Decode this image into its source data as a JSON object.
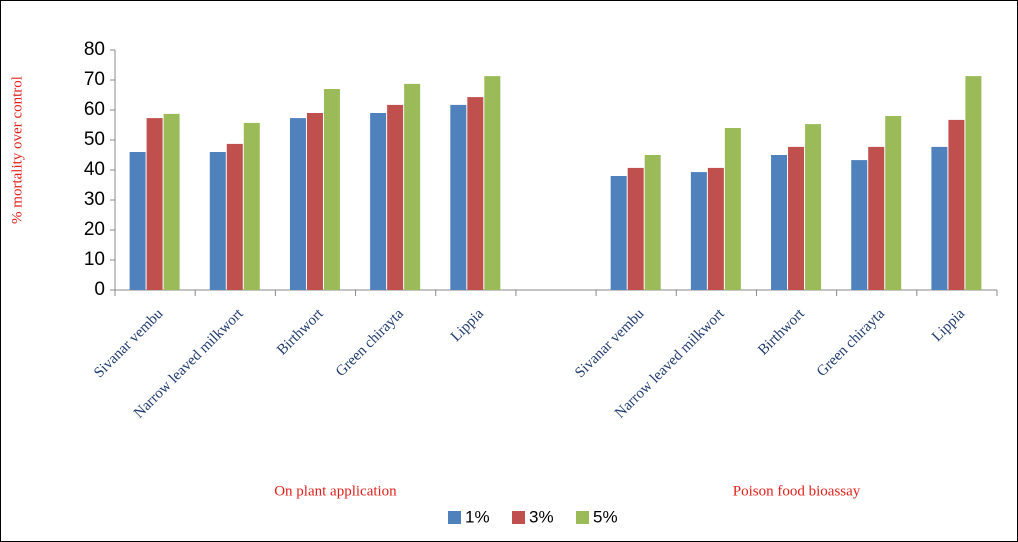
{
  "chart_data": {
    "type": "bar",
    "y_label": "% mortality over control",
    "categories": [
      "Sivanar vembu",
      "Narrow leaved milkwort",
      "Birthwort",
      "Green chirayta",
      "Lippia",
      null,
      "Sivanar vembu",
      "Narrow leaved milkwort",
      "Birthwort",
      "Green chirayta",
      "Lippia"
    ],
    "groups": [
      "On plant application",
      "Poison food bioassay"
    ],
    "series": [
      {
        "name": "1%",
        "color": "#4f81bd",
        "values": [
          46,
          46,
          57.3,
          59,
          61.7,
          null,
          38,
          39.3,
          45,
          43.3,
          47.7
        ]
      },
      {
        "name": "3%",
        "color": "#c0504d",
        "values": [
          57.3,
          48.7,
          59,
          61.7,
          64.3,
          null,
          40.7,
          40.7,
          47.7,
          47.7,
          56.7
        ]
      },
      {
        "name": "5%",
        "color": "#9bbb59",
        "values": [
          58.7,
          55.7,
          67,
          68.7,
          71.3,
          null,
          45,
          54,
          55.3,
          58,
          71.3
        ]
      }
    ],
    "ylim": [
      0,
      80
    ],
    "yticks": [
      0,
      10,
      20,
      30,
      40,
      50,
      60,
      70,
      80
    ],
    "grid": false,
    "legend": "bottom"
  }
}
